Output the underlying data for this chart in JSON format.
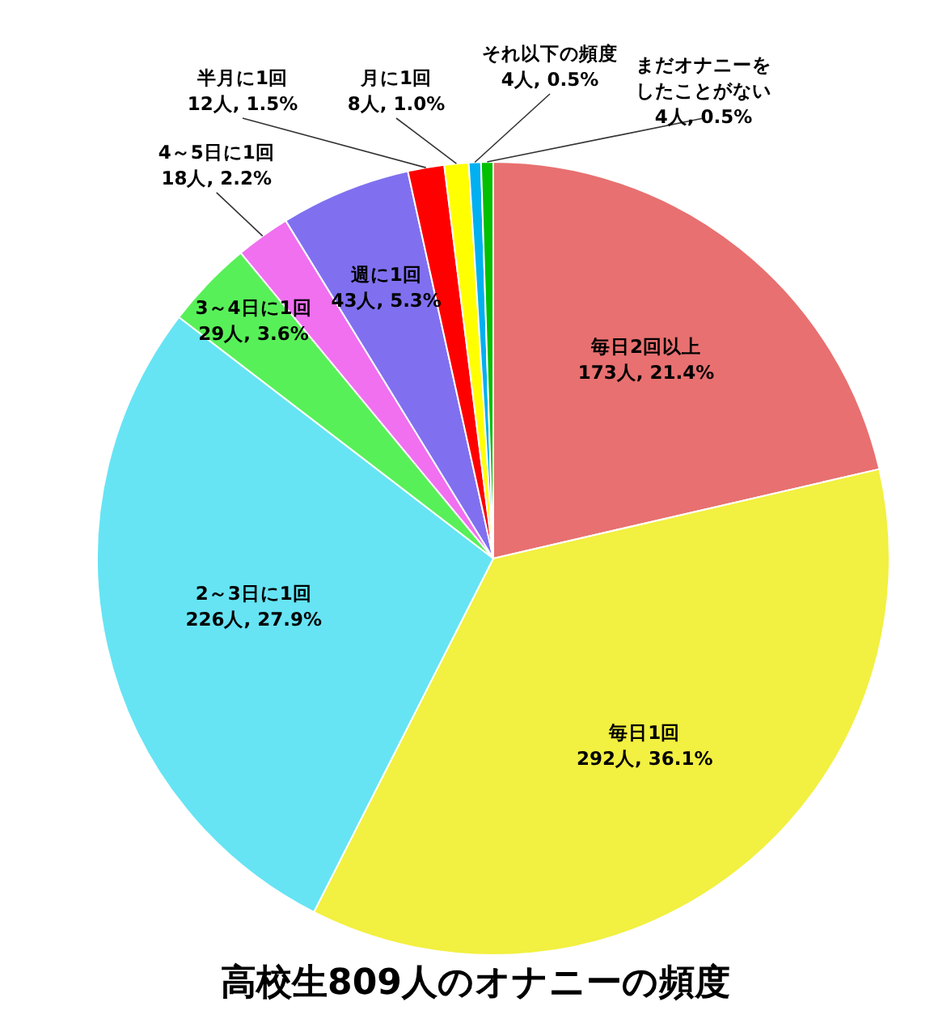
{
  "chart_data": {
    "type": "pie",
    "title": "高校生809人のオナニーの頻度",
    "categories": [
      "毎日2回以上",
      "毎日1回",
      "2～3日に1回",
      "3～4日に1回",
      "4～5日に1回",
      "週に1回",
      "半月に1回",
      "月に1回",
      "それ以下の頻度",
      "まだオナニーをしたことがない"
    ],
    "values": [
      173,
      292,
      226,
      29,
      18,
      43,
      12,
      8,
      4,
      4
    ],
    "value_labels": [
      "173人, 21.4%",
      "292人, 36.1%",
      "226人, 27.9%",
      "29人, 3.6%",
      "18人, 2.2%",
      "43人, 5.3%",
      "12人, 1.5%",
      "8人, 1.0%",
      "4人, 0.5%",
      "4人, 0.5%"
    ],
    "colors": [
      "#e87070",
      "#f2f040",
      "#66e4f4",
      "#58f058",
      "#f070f0",
      "#8070f0",
      "#ff0000",
      "#ffff00",
      "#00b0f0",
      "#00c000"
    ],
    "legend": false
  }
}
